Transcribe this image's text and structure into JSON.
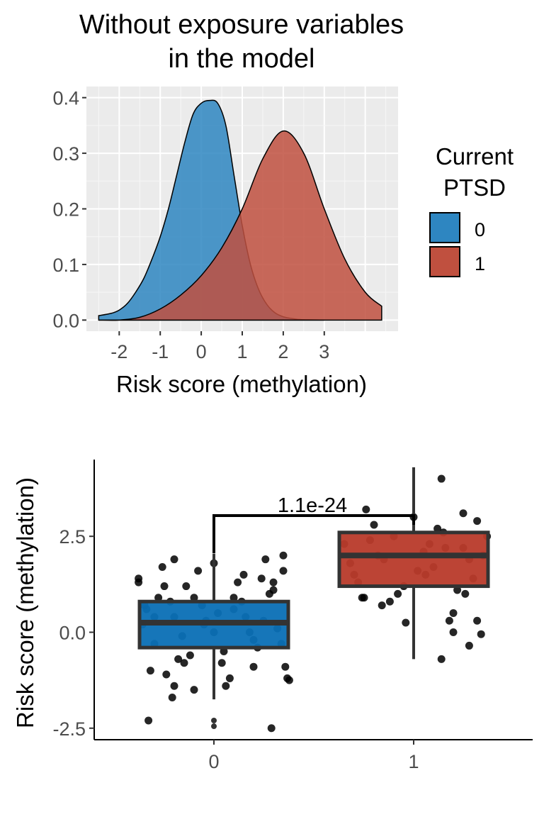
{
  "chart_data": [
    {
      "type": "area",
      "title_lines": [
        "Without exposure variables",
        "in the model"
      ],
      "xlabel": "Risk score (methylation)",
      "ylabel": "",
      "xlim": [
        -2.8,
        4.8
      ],
      "ylim": [
        -0.02,
        0.42
      ],
      "x_ticks": [
        -2,
        -1,
        0,
        1,
        2,
        3
      ],
      "y_ticks": [
        0.0,
        0.1,
        0.2,
        0.3,
        0.4
      ],
      "grid": true,
      "legend": {
        "title_lines": [
          "Current",
          "PTSD"
        ],
        "placement": "right",
        "entries": [
          {
            "label": "0",
            "color": "#2e86c1"
          },
          {
            "label": "1",
            "color": "#c0503f"
          }
        ]
      },
      "series": [
        {
          "name": "0",
          "color": "#2e86c1",
          "x": [
            -2.5,
            -2.2,
            -2.0,
            -1.8,
            -1.6,
            -1.4,
            -1.2,
            -1.0,
            -0.8,
            -0.6,
            -0.4,
            -0.2,
            0.0,
            0.2,
            0.4,
            0.6,
            0.8,
            1.0,
            1.2,
            1.4,
            1.6,
            1.8,
            2.0,
            2.2,
            2.4,
            2.6,
            2.8,
            3.0
          ],
          "y": [
            0.008,
            0.012,
            0.018,
            0.03,
            0.05,
            0.075,
            0.11,
            0.15,
            0.2,
            0.26,
            0.32,
            0.37,
            0.39,
            0.395,
            0.39,
            0.35,
            0.26,
            0.17,
            0.1,
            0.055,
            0.028,
            0.013,
            0.006,
            0.003,
            0.001,
            0.0005,
            0.0002,
            0.0
          ]
        },
        {
          "name": "1",
          "color": "#c0503f",
          "x": [
            -2.5,
            -2.0,
            -1.5,
            -1.0,
            -0.5,
            0.0,
            0.5,
            1.0,
            1.5,
            2.0,
            2.5,
            3.0,
            3.5,
            4.0,
            4.4
          ],
          "y": [
            0.0,
            0.0,
            0.005,
            0.02,
            0.045,
            0.08,
            0.13,
            0.2,
            0.29,
            0.34,
            0.3,
            0.2,
            0.11,
            0.05,
            0.025
          ]
        }
      ]
    },
    {
      "type": "box",
      "xlabel": "",
      "ylabel": "Risk score (methylation)",
      "ylim": [
        -2.8,
        4.5
      ],
      "y_ticks": [
        -2.5,
        0.0,
        2.5
      ],
      "y_tick_labels": [
        "-2.5",
        "0.0",
        "2.5"
      ],
      "categories": [
        "0",
        "1"
      ],
      "grid": false,
      "annotation": "1.1e-24",
      "boxes": [
        {
          "category": "0",
          "color": "#0a6fb5",
          "whisker_low": -1.75,
          "q1": -0.4,
          "median": 0.25,
          "q3": 0.8,
          "whisker_high": 2.05
        },
        {
          "category": "1",
          "color": "#b83a2a",
          "whisker_low": -0.7,
          "q1": 1.2,
          "median": 2.0,
          "q3": 2.6,
          "whisker_high": 4.3
        }
      ],
      "outliers": [
        {
          "category": "0",
          "y": [
            -2.3,
            -2.45
          ]
        }
      ],
      "jitter_points": [
        {
          "category": "0",
          "x_offset": [
            -0.38,
            -0.35,
            -0.3,
            -0.25,
            -0.2,
            -0.15,
            -0.1,
            -0.05,
            0.0,
            0.05,
            0.1,
            0.15,
            0.2,
            0.25,
            0.3,
            0.35,
            -0.32,
            -0.22,
            -0.12,
            0.02,
            0.12,
            0.22,
            0.32,
            -0.28,
            -0.18,
            -0.08,
            0.08,
            0.18,
            0.28,
            0.36,
            -0.36,
            -0.26,
            -0.16,
            -0.06,
            0.06,
            0.16,
            0.26,
            0.34,
            -0.34,
            -0.24,
            -0.14,
            -0.04,
            0.04,
            0.14,
            0.24,
            0.37,
            -0.2,
            0.3,
            -0.1,
            0.1,
            -0.3,
            0.2,
            -0.2,
            0.0,
            0.29,
            -0.21,
            -0.33,
            0.38,
            -0.38,
            0.35
          ],
          "y": [
            1.4,
            0.7,
            -0.3,
            1.2,
            0.4,
            -0.8,
            0.9,
            0.2,
            1.8,
            -0.5,
            0.6,
            1.5,
            -0.2,
            0.3,
            1.1,
            2.0,
            -1.0,
            0.8,
            -0.6,
            0.5,
            1.3,
            -0.4,
            0.1,
            0.9,
            -0.7,
            1.6,
            -1.2,
            0.0,
            1.0,
            -0.9,
            0.2,
            1.7,
            -0.1,
            0.7,
            -1.4,
            0.4,
            1.9,
            -0.3,
            0.6,
            -1.1,
            1.2,
            0.3,
            -0.8,
            0.8,
            1.4,
            -1.2,
            1.9,
            1.3,
            -1.5,
            0.9,
            0.4,
            -0.9,
            -1.4,
            0.0,
            -2.5,
            -1.7,
            -2.3,
            -1.25,
            1.3,
            1.6
          ]
        },
        {
          "category": "1",
          "x_offset": [
            -0.35,
            -0.3,
            -0.25,
            -0.2,
            -0.15,
            -0.1,
            -0.05,
            0.0,
            0.05,
            0.1,
            0.15,
            0.2,
            0.25,
            0.3,
            0.35,
            -0.32,
            -0.22,
            -0.12,
            0.02,
            0.12,
            0.22,
            0.32,
            -0.28,
            -0.18,
            -0.08,
            0.08,
            0.18,
            0.28,
            0.37,
            -0.26,
            -0.16,
            0.06,
            0.16,
            0.26,
            0.14,
            0.28,
            0.2,
            0.14,
            0.25,
            0.32,
            0.34,
            -0.24,
            -0.04
          ],
          "y": [
            2.3,
            1.5,
            0.9,
            2.8,
            1.9,
            2.5,
            1.2,
            3.0,
            2.1,
            1.7,
            2.6,
            0.5,
            2.2,
            1.4,
            2.0,
            1.8,
            2.4,
            0.8,
            1.6,
            2.7,
            1.1,
            2.9,
            1.3,
            2.0,
            1.0,
            2.3,
            0.3,
            1.9,
            2.5,
            0.9,
            0.7,
            1.5,
            2.2,
            1.0,
            -0.7,
            -0.35,
            0.0,
            4.0,
            3.1,
            0.3,
            -0.05,
            3.2,
            0.25
          ]
        }
      ]
    }
  ]
}
